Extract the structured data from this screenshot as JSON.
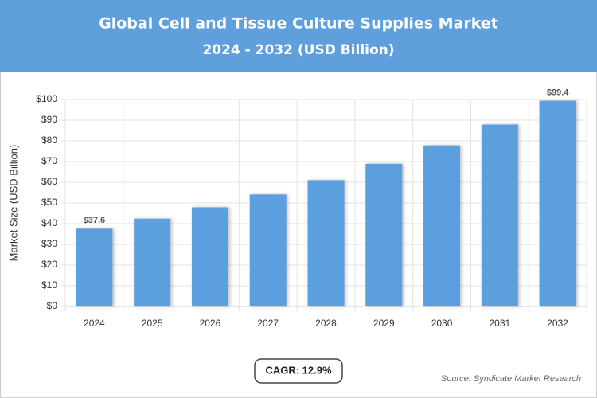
{
  "chart_data": {
    "type": "bar",
    "title": "Global Cell and Tissue Culture Supplies Market",
    "subtitle": "2024 - 2032 (USD Billion)",
    "y_label": "Market Size (USD Billion)",
    "categories": [
      "2024",
      "2025",
      "2026",
      "2027",
      "2028",
      "2029",
      "2030",
      "2031",
      "2032"
    ],
    "values": [
      37.6,
      42.4,
      47.9,
      54.1,
      61.0,
      68.9,
      77.8,
      87.9,
      99.4
    ],
    "value_labels": [
      "$37.6",
      null,
      null,
      null,
      null,
      null,
      null,
      null,
      "$99.4"
    ],
    "color": "#5b9fde",
    "ylim": [
      0,
      100
    ],
    "yticks": [
      {
        "value": 0,
        "label": "$0"
      },
      {
        "value": 10,
        "label": "$10"
      },
      {
        "value": 20,
        "label": "$20"
      },
      {
        "value": 30,
        "label": "$30"
      },
      {
        "value": 40,
        "label": "$40"
      },
      {
        "value": 50,
        "label": "$50"
      },
      {
        "value": 60,
        "label": "$60"
      },
      {
        "value": 70,
        "label": "$70"
      },
      {
        "value": 80,
        "label": "$80"
      },
      {
        "value": 90,
        "label": "$90"
      },
      {
        "value": 100,
        "label": "$100"
      }
    ],
    "grid": true,
    "cagr": "CAGR: 12.9%",
    "source": "Source: Syndicate Market Research"
  }
}
